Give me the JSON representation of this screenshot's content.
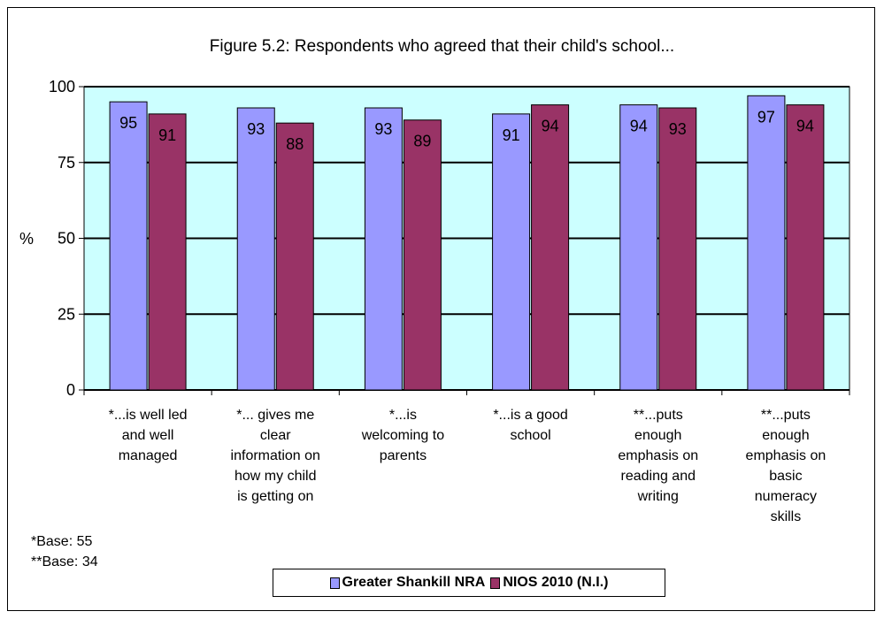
{
  "chart_data": {
    "type": "bar",
    "title": "Figure 5.2: Respondents who agreed that their child's school...",
    "ylabel": "%",
    "ylim": [
      0,
      100
    ],
    "yticks": [
      "0",
      "25",
      "50",
      "75",
      "100"
    ],
    "categories": [
      "*...is well led and well managed",
      "*... gives me clear information on how my child is getting on",
      "*...is welcoming to parents",
      "*...is a good school",
      "**...puts enough emphasis on reading and writing",
      "**...puts enough emphasis on basic numeracy skills"
    ],
    "category_lines": [
      [
        "*...is well led",
        "and well",
        "managed"
      ],
      [
        "*... gives me",
        "clear",
        "information on",
        "how my child",
        "is getting on"
      ],
      [
        "*...is",
        "welcoming to",
        "parents"
      ],
      [
        "*...is a good",
        "school"
      ],
      [
        "**...puts",
        "enough",
        "emphasis on",
        "reading and",
        "writing"
      ],
      [
        "**...puts",
        "enough",
        "emphasis on",
        "basic",
        "numeracy",
        "skills"
      ]
    ],
    "series": [
      {
        "name": "Greater Shankill NRA",
        "values": [
          95,
          93,
          93,
          91,
          94,
          97
        ],
        "color": "#9999ff"
      },
      {
        "name": "NIOS 2010 (N.I.)",
        "values": [
          91,
          88,
          89,
          94,
          93,
          94
        ],
        "color": "#993366"
      }
    ],
    "plot_background": "#ccffff",
    "grid": true,
    "legend_position": "bottom"
  },
  "notes": [
    "*Base: 55",
    "**Base: 34"
  ]
}
